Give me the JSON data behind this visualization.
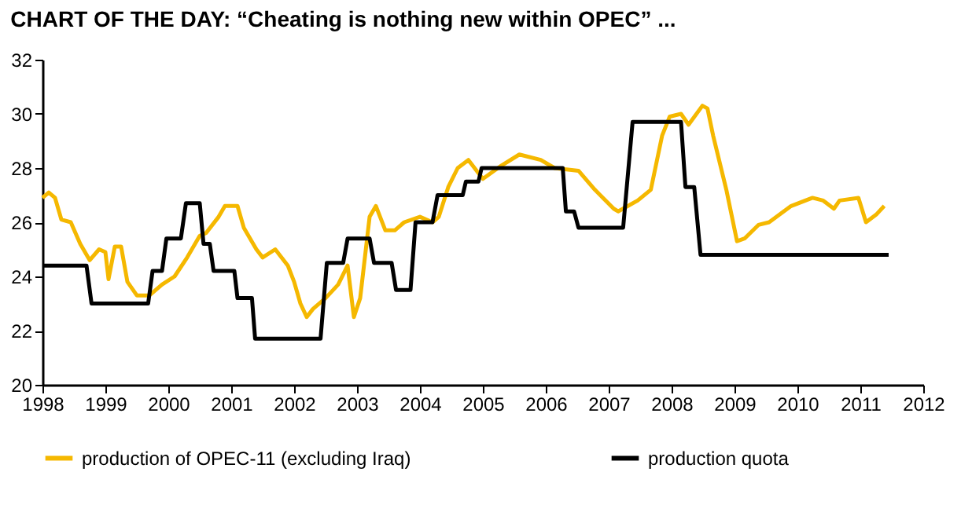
{
  "chart_data": {
    "type": "line",
    "title": "CHART OF THE DAY: “Cheating is nothing new within OPEC” ...",
    "xlim": [
      1998,
      2012
    ],
    "xticks": [
      1998,
      1999,
      2000,
      2001,
      2002,
      2003,
      2004,
      2005,
      2006,
      2007,
      2008,
      2009,
      2010,
      2011,
      2012
    ],
    "ylim": [
      20,
      32
    ],
    "yticks": [
      20,
      22,
      24,
      26,
      28,
      30,
      32
    ],
    "grid": false,
    "legend": "bottom",
    "marker": "none",
    "line_style": "solid",
    "series": [
      {
        "name": "production of OPEC-11 (excluding Iraq)",
        "color": "#f5b800",
        "x": [
          1998.0,
          1998.1,
          1998.2,
          1998.3,
          1998.45,
          1998.6,
          1998.75,
          1998.9,
          1999.0,
          1999.05,
          1999.15,
          1999.25,
          1999.35,
          1999.5,
          1999.7,
          1999.9,
          2000.1,
          2000.3,
          2000.5,
          2000.6,
          2000.8,
          2000.9,
          2001.1,
          2001.2,
          2001.4,
          2001.5,
          2001.7,
          2001.9,
          2002.0,
          2002.1,
          2002.2,
          2002.3,
          2002.5,
          2002.7,
          2002.85,
          2002.95,
          2003.05,
          2003.2,
          2003.3,
          2003.45,
          2003.6,
          2003.75,
          2004.0,
          2004.2,
          2004.3,
          2004.45,
          2004.6,
          2004.77,
          2005.0,
          2005.3,
          2005.58,
          2005.92,
          2006.14,
          2006.52,
          2006.78,
          2007.08,
          2007.15,
          2007.46,
          2007.67,
          2007.85,
          2007.97,
          2008.15,
          2008.27,
          2008.49,
          2008.57,
          2008.66,
          2008.87,
          2009.04,
          2009.16,
          2009.38,
          2009.55,
          2009.9,
          2010.24,
          2010.41,
          2010.58,
          2010.67,
          2010.97,
          2011.09,
          2011.26,
          2011.38
        ],
        "values": [
          26.9,
          27.1,
          26.9,
          26.1,
          26.0,
          25.2,
          24.6,
          25.0,
          24.9,
          23.9,
          25.1,
          25.1,
          23.8,
          23.3,
          23.3,
          23.7,
          24.0,
          24.7,
          25.5,
          25.6,
          26.2,
          26.6,
          26.6,
          25.8,
          25.0,
          24.7,
          25.0,
          24.4,
          23.8,
          23.0,
          22.5,
          22.8,
          23.2,
          23.7,
          24.4,
          22.5,
          23.2,
          26.2,
          26.6,
          25.7,
          25.7,
          26.0,
          26.2,
          26.0,
          26.2,
          27.3,
          28.0,
          28.3,
          27.6,
          28.1,
          28.5,
          28.3,
          28.0,
          27.9,
          27.2,
          26.5,
          26.4,
          26.8,
          27.2,
          29.2,
          29.9,
          30.0,
          29.6,
          30.3,
          30.2,
          29.2,
          27.2,
          25.3,
          25.4,
          25.9,
          26.0,
          26.6,
          26.9,
          26.8,
          26.5,
          26.8,
          26.9,
          26.0,
          26.3,
          26.6
        ]
      },
      {
        "name": "production quota",
        "color": "#000000",
        "x": [
          1998.0,
          1998.7,
          1998.78,
          1999.68,
          1999.75,
          1999.9,
          1999.97,
          2000.2,
          2000.28,
          2000.5,
          2000.56,
          2000.66,
          2000.72,
          2001.05,
          2001.1,
          2001.33,
          2001.38,
          2002.42,
          2002.52,
          2002.78,
          2002.85,
          2003.2,
          2003.27,
          2003.55,
          2003.62,
          2003.85,
          2003.93,
          2004.2,
          2004.28,
          2004.68,
          2004.73,
          2004.93,
          2004.98,
          2006.27,
          2006.32,
          2006.45,
          2006.52,
          2007.23,
          2007.38,
          2008.15,
          2008.22,
          2008.36,
          2008.46,
          2011.45
        ],
        "values": [
          24.4,
          24.4,
          23.0,
          23.0,
          24.2,
          24.2,
          25.4,
          25.4,
          26.7,
          26.7,
          25.2,
          25.2,
          24.2,
          24.2,
          23.2,
          23.2,
          21.7,
          21.7,
          24.5,
          24.5,
          25.4,
          25.4,
          24.5,
          24.5,
          23.5,
          23.5,
          26.0,
          26.0,
          27.0,
          27.0,
          27.5,
          27.5,
          28.0,
          28.0,
          26.4,
          26.4,
          25.8,
          25.8,
          29.7,
          29.7,
          27.3,
          27.3,
          24.8,
          24.8
        ]
      }
    ]
  }
}
